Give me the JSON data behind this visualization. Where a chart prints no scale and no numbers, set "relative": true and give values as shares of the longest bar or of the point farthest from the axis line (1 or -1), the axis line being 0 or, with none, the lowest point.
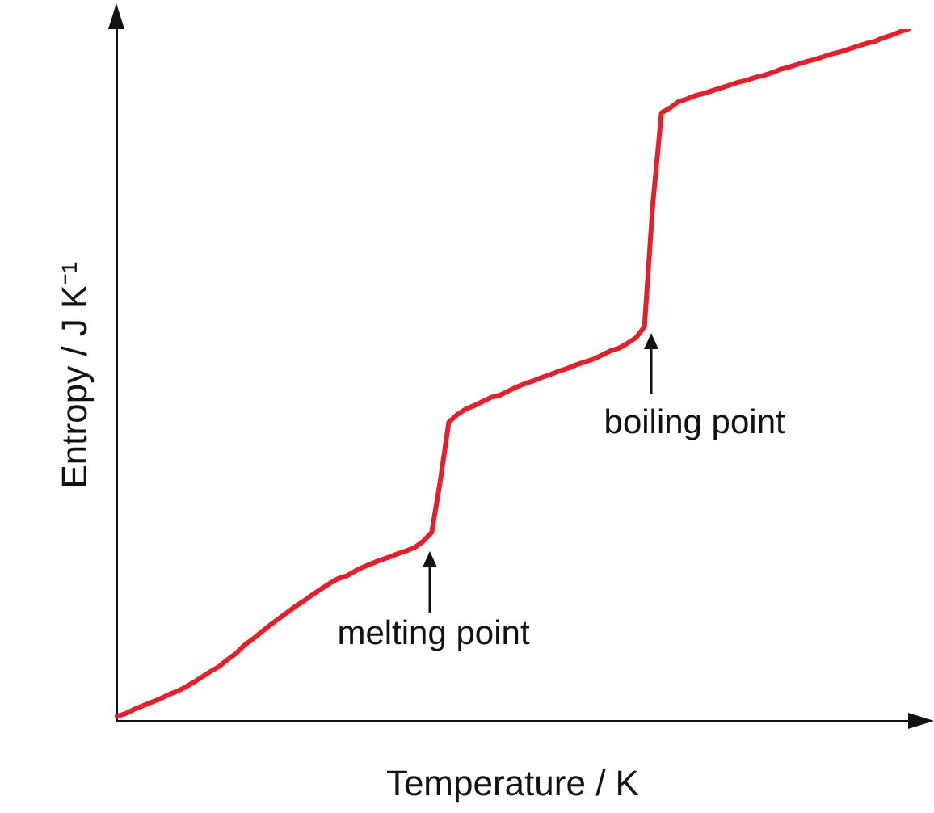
{
  "chart_data": {
    "type": "line",
    "relative": true,
    "xlabel": "Temperature / K",
    "ylabel": "Entropy / J K⁻¹",
    "categories": [
      null,
      null,
      null,
      null,
      null,
      null,
      null,
      null,
      null,
      null,
      null,
      null,
      null,
      null,
      null,
      null,
      null,
      null,
      null,
      null,
      null,
      null,
      null,
      null,
      null,
      null,
      null,
      null,
      null,
      null,
      null,
      null,
      null,
      null,
      null,
      null,
      null,
      null,
      null,
      null,
      null,
      null,
      null,
      null,
      null,
      null,
      null,
      null,
      null,
      null,
      null,
      null,
      null,
      null,
      null,
      null,
      null,
      null,
      null,
      null,
      null,
      null,
      null,
      null,
      null,
      null,
      null,
      null,
      null,
      null,
      null,
      null,
      null,
      null,
      null,
      null,
      null,
      null,
      null,
      null,
      null,
      null,
      null,
      null,
      null,
      null,
      null,
      null,
      null,
      null,
      null,
      null,
      null,
      null
    ],
    "series": [
      {
        "color": "#e3202b",
        "values": [
          0.007,
          0.011,
          0.017,
          0.022,
          0.027,
          0.032,
          0.038,
          0.043,
          0.049,
          0.056,
          0.064,
          0.072,
          0.079,
          0.089,
          0.098,
          0.11,
          0.119,
          0.129,
          0.139,
          0.148,
          0.157,
          0.166,
          0.174,
          0.183,
          0.191,
          0.199,
          0.206,
          0.21,
          0.217,
          0.223,
          0.228,
          0.233,
          0.237,
          0.242,
          0.246,
          0.251,
          0.26,
          0.273,
          0.347,
          0.432,
          0.443,
          0.451,
          0.456,
          0.462,
          0.468,
          0.471,
          0.477,
          0.483,
          0.488,
          0.492,
          0.497,
          0.501,
          0.506,
          0.51,
          0.515,
          0.519,
          0.523,
          0.529,
          0.535,
          0.539,
          0.546,
          0.554,
          0.57,
          0.749,
          0.879,
          0.886,
          0.895,
          0.899,
          0.904,
          0.907,
          0.911,
          0.915,
          0.919,
          0.923,
          0.926,
          0.93,
          0.933,
          0.937,
          0.942,
          0.945,
          0.949,
          0.953,
          0.956,
          0.96,
          0.964,
          0.967,
          0.971,
          0.975,
          0.979,
          0.982,
          0.987,
          0.991,
          0.996,
          1
        ]
      }
    ],
    "annotations": [
      "melting point",
      "boiling point"
    ],
    "grid": false,
    "legend": false,
    "marker": "none",
    "line_style": "solid"
  }
}
